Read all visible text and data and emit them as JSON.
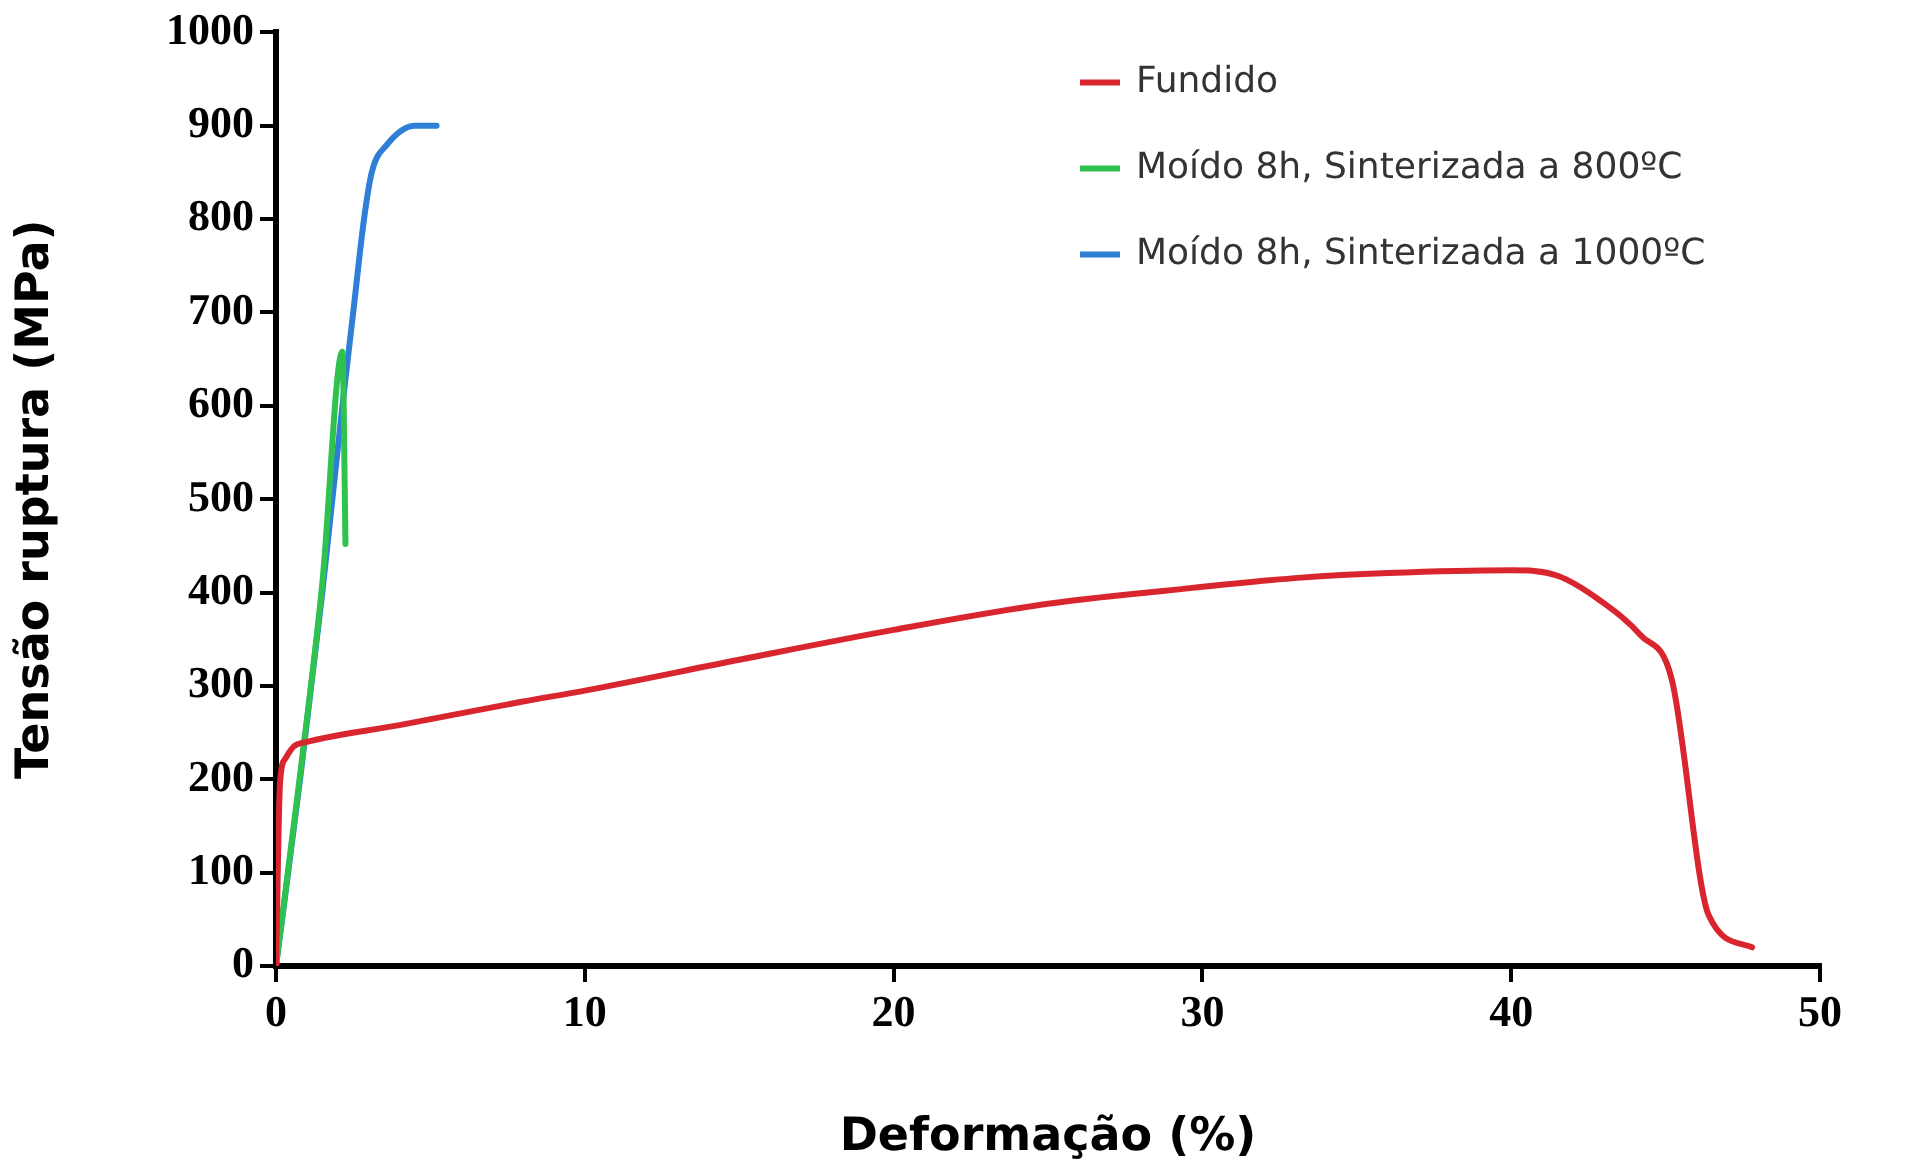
{
  "chart_data": {
    "type": "line",
    "xlabel": "Deformação (%)",
    "ylabel": "Tensão ruptura (MPa)",
    "xlim": [
      0,
      50
    ],
    "xticks": [
      0,
      10,
      20,
      30,
      40,
      50
    ],
    "ylim": [
      0,
      1000
    ],
    "yticks": [
      0,
      100,
      200,
      300,
      400,
      500,
      600,
      700,
      800,
      900,
      1000
    ],
    "grid": false,
    "legend": "top right",
    "marker": "none",
    "line_style": "solid",
    "series": [
      {
        "name": "Fundido",
        "color": "#d9262e",
        "x": [
          0,
          0.13,
          0.3,
          0.57,
          1,
          4,
          7.95,
          10,
          15,
          20,
          25,
          28.8,
          33.2,
          36,
          40,
          41.5,
          42.9,
          44.2,
          45.2,
          46.4,
          47.8
        ],
        "values": [
          0,
          196,
          222,
          235,
          240,
          258,
          283,
          295,
          328,
          360,
          388,
          402,
          416,
          421,
          424,
          418,
          391,
          354,
          307,
          54,
          20
        ]
      },
      {
        "name": "Moído 8h, Sinterizada a 800ºC",
        "color": "#2fc24e",
        "x": [
          0,
          0.8,
          1.5,
          2.15,
          2.25
        ],
        "values": [
          0,
          210,
          410,
          658,
          452
        ]
      },
      {
        "name": "Moído 8h, Sinterizada a 1000ºC",
        "color": "#2f7fd6",
        "x": [
          0,
          0.78,
          1.5,
          2.15,
          2.5,
          2.85,
          3.1,
          3.6,
          4.5,
          5.2
        ],
        "values": [
          0,
          200,
          400,
          600,
          700,
          800,
          850,
          880,
          900,
          900
        ]
      }
    ]
  }
}
